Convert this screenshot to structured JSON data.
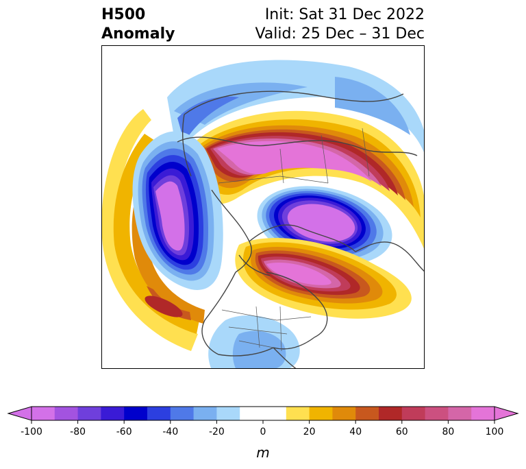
{
  "title": {
    "left_line1": "H500",
    "left_line2": "Anomaly",
    "right_line1": "Init: Sat 31 Dec 2022",
    "right_line2": "Valid: 25 Dec – 31 Dec"
  },
  "colorbar": {
    "unit": "m",
    "ticks": [
      "-100",
      "-80",
      "-60",
      "-40",
      "-20",
      "0",
      "20",
      "40",
      "60",
      "80",
      "100"
    ],
    "colors": [
      "#d371e8",
      "#a353e0",
      "#6f3fdc",
      "#3a1bd6",
      "#0000cc",
      "#2c3fe0",
      "#4f79e8",
      "#7ab0f0",
      "#a9d8fa",
      "#ffffff",
      "#ffffff",
      "#ffe050",
      "#f0b400",
      "#e08a0a",
      "#c8581e",
      "#b02828",
      "#c03c5a",
      "#cc5080",
      "#d466a8",
      "#e474d8"
    ],
    "extend_low_color": "#d371e8",
    "extend_high_color": "#e474d8"
  },
  "map": {
    "projection": "polar-stereographic",
    "field": "500 hPa geopotential height anomaly",
    "features": [
      {
        "name": "positive anomaly over Eurasia/Siberia",
        "peak_m": 100
      },
      {
        "name": "negative anomaly over Gulf of Alaska/NE Pacific",
        "peak_m": -100
      },
      {
        "name": "negative anomaly over Barents/Kara Sea",
        "peak_m": -100
      },
      {
        "name": "positive anomaly over Greenland/NE Canada",
        "peak_m": 100
      },
      {
        "name": "negative anomaly over southeast US",
        "peak_m": -40
      }
    ]
  }
}
